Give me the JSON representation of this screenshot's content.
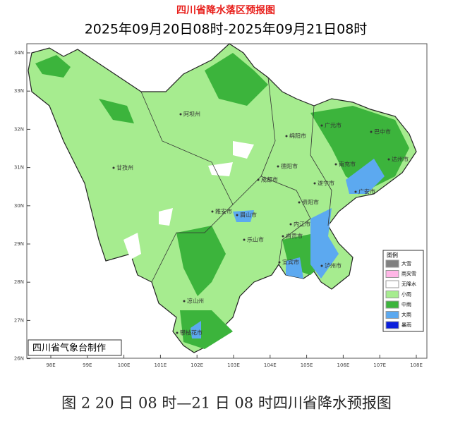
{
  "title": "四川省降水落区预报图",
  "subtitle": "2025年09月20日08时-2025年09月21日08时",
  "lat_labels": [
    "34N",
    "33N",
    "32N",
    "31N",
    "30N",
    "29N",
    "28N",
    "27N",
    "26N"
  ],
  "lon_labels": [
    "98E",
    "99E",
    "100E",
    "101E",
    "102E",
    "103E",
    "104E",
    "105E",
    "106E",
    "107E",
    "108E"
  ],
  "cities": [
    "阿坝州",
    "甘孜州",
    "广元市",
    "巴中市",
    "绵阳市",
    "德阳市",
    "南充市",
    "达州市",
    "成都市",
    "遂宁市",
    "广安市",
    "雅安市",
    "眉山市",
    "资阳市",
    "乐山市",
    "内江市",
    "自贡市",
    "宜宾市",
    "泸州市",
    "凉山州",
    "攀枝花市"
  ],
  "legend": {
    "title": "图例",
    "items": [
      {
        "label": "大雪",
        "color": "#808080"
      },
      {
        "label": "雨夹雪",
        "color": "#ffb6e6"
      },
      {
        "label": "无降水",
        "color": "#ffffff"
      },
      {
        "label": "小雨",
        "color": "#a6ec8f"
      },
      {
        "label": "中雨",
        "color": "#3cb43c"
      },
      {
        "label": "大雨",
        "color": "#5ca9f0"
      },
      {
        "label": "暴雨",
        "color": "#0b1fdc"
      }
    ]
  },
  "credit": "四川省气象台制作",
  "caption": "图 2  20 日 08 时—21 日 08 时四川省降水预报图"
}
